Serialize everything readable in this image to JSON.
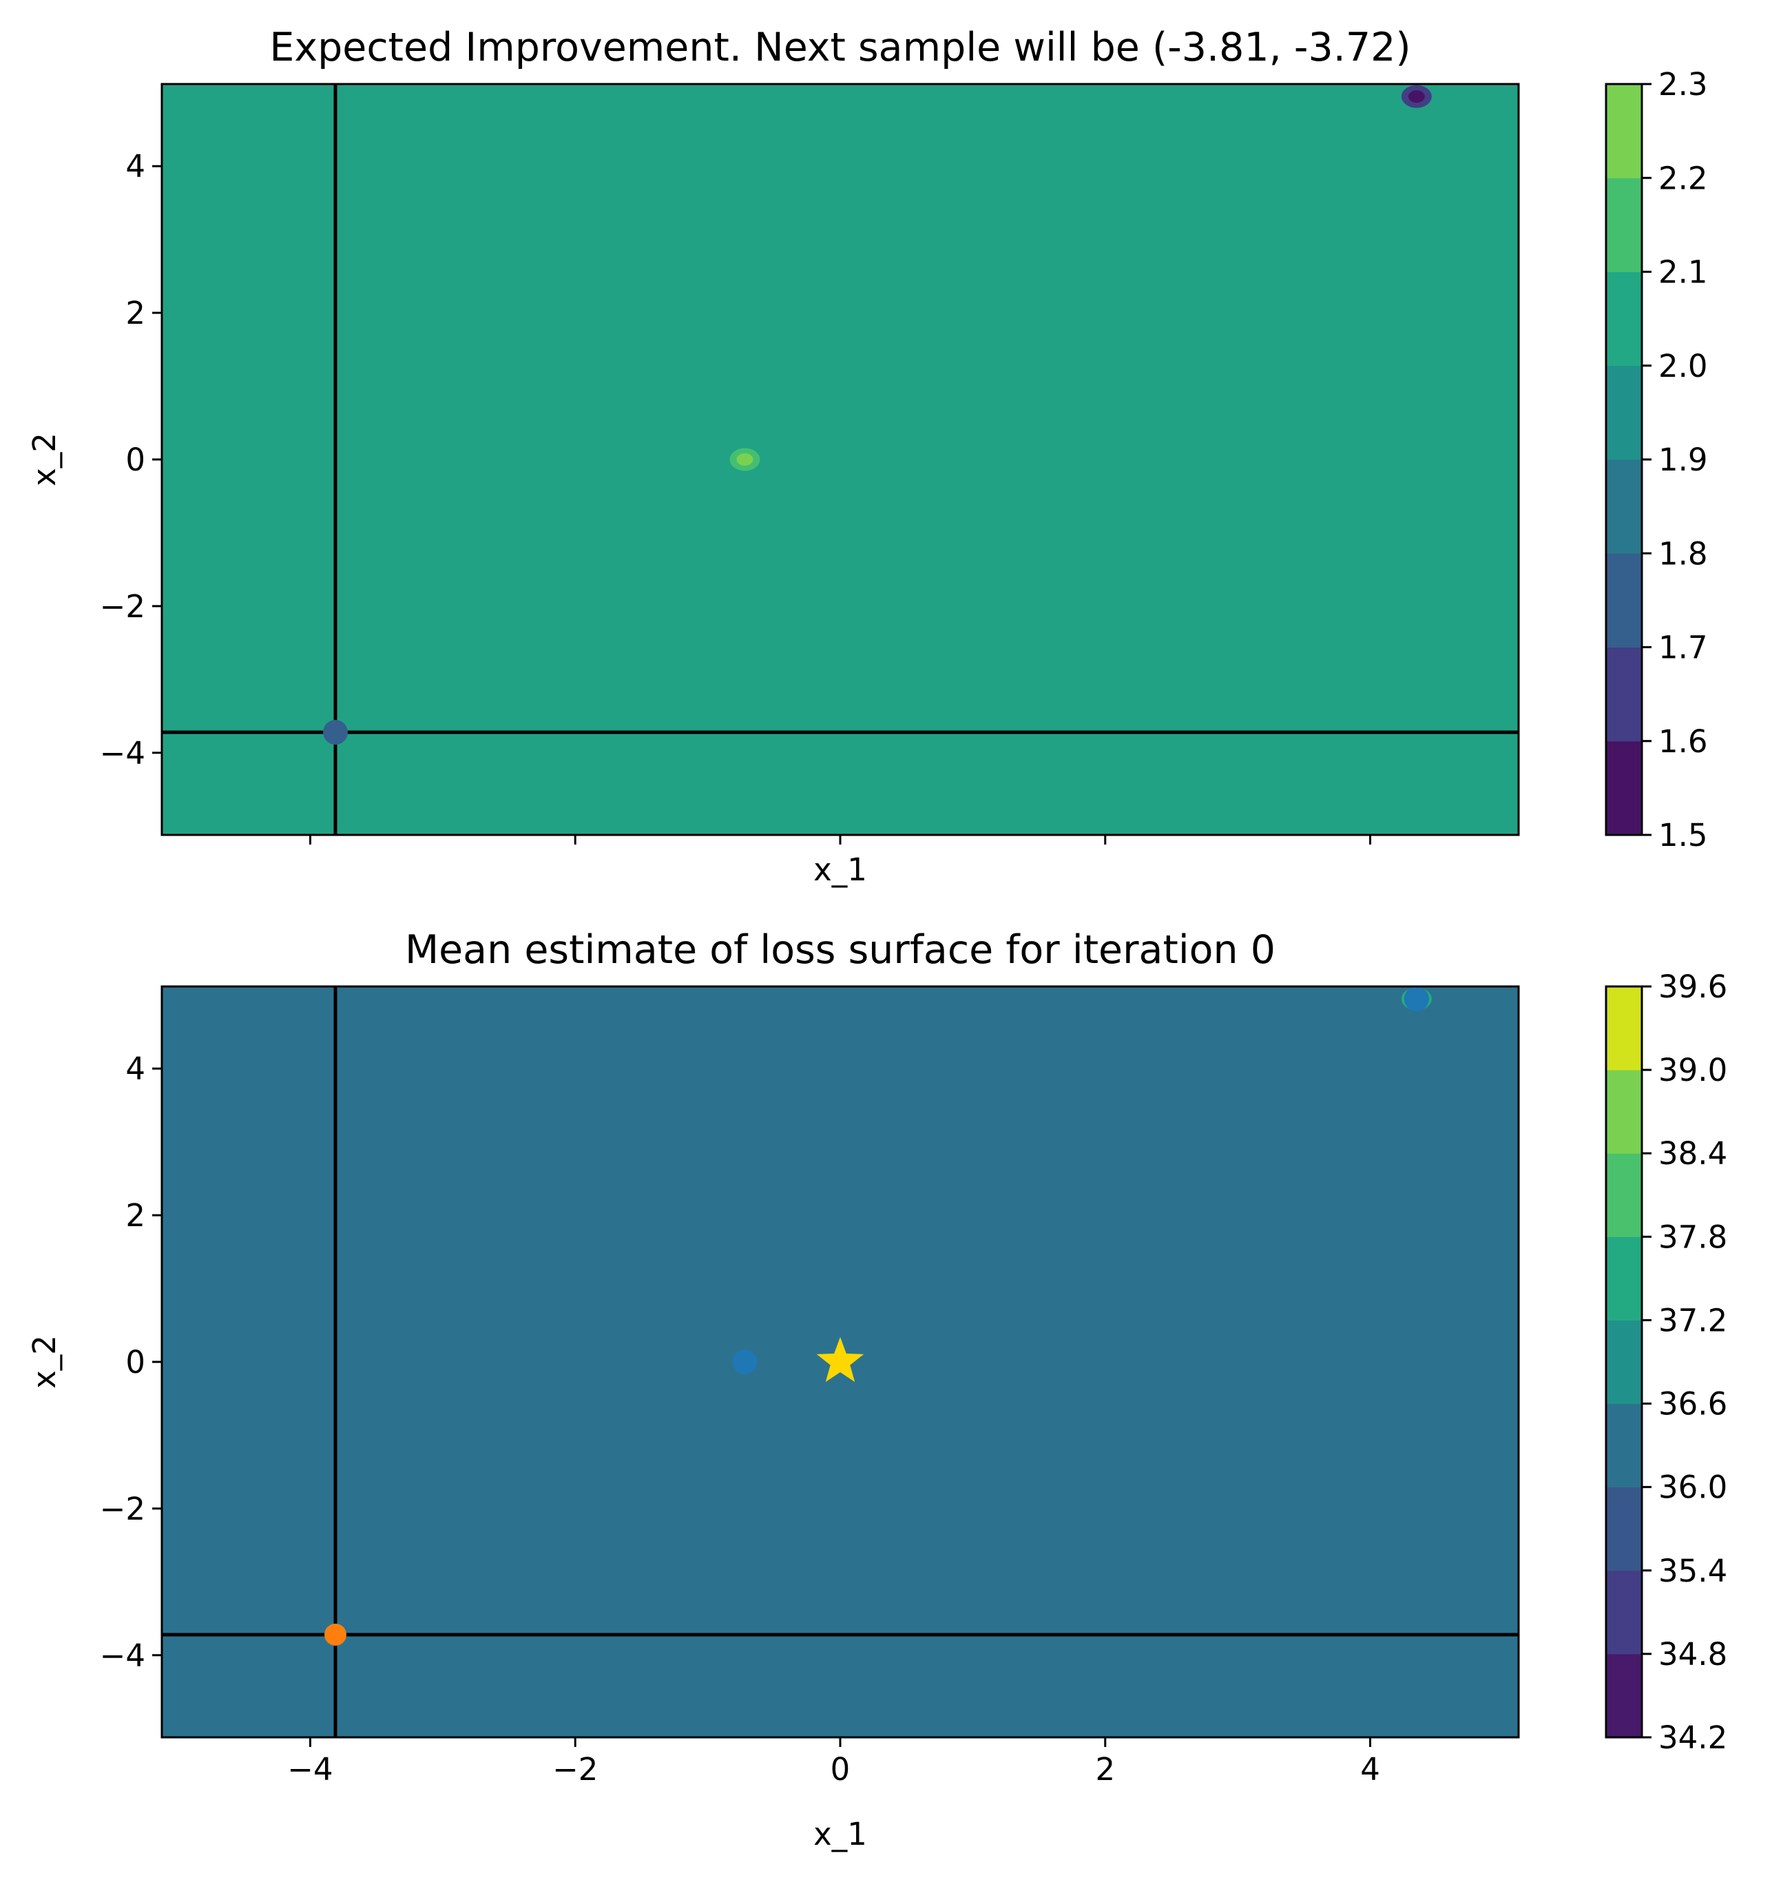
{
  "chart_data": [
    {
      "type": "contour",
      "title": "Expected Improvement. Next sample will be (-3.81, -3.72)",
      "xlabel": "x_1",
      "ylabel": "x_2",
      "xlim": [
        -5.12,
        5.12
      ],
      "ylim": [
        -5.12,
        5.12
      ],
      "x_ticks": [
        -4,
        -2,
        0,
        2,
        4
      ],
      "x_tick_labels": [
        "",
        "",
        "",
        "",
        ""
      ],
      "y_ticks": [
        -4,
        -2,
        0,
        2,
        4
      ],
      "y_tick_labels": [
        "−4",
        "−2",
        "0",
        "2",
        "4"
      ],
      "background_fill_color": "#21a285",
      "colorbar": {
        "levels": [
          1.5,
          1.6,
          1.7,
          1.8,
          1.9,
          2.0,
          2.1,
          2.2,
          2.3
        ],
        "tick_labels": [
          "1.5",
          "1.6",
          "1.7",
          "1.8",
          "1.9",
          "2.0",
          "2.1",
          "2.2",
          "2.3"
        ],
        "colors": [
          "#471365",
          "#433e85",
          "#355f8d",
          "#2a788e",
          "#21918c",
          "#22a884",
          "#44bf70",
          "#7ad151",
          "#d2e21b"
        ]
      },
      "features": [
        {
          "kind": "bump",
          "x": -0.72,
          "y": 0.0,
          "colors": [
            "#44bf70",
            "#7ad151"
          ]
        },
        {
          "kind": "dip",
          "x": 4.35,
          "y": 4.95,
          "colors": [
            "#433e85",
            "#471365"
          ]
        }
      ],
      "points": [
        {
          "x": -3.81,
          "y": -3.72,
          "color": "#355f8d"
        }
      ],
      "crosshair": {
        "x": -3.81,
        "y": -3.72,
        "color": "#000000"
      }
    },
    {
      "type": "contour",
      "title": "Mean estimate of loss surface for iteration 0",
      "xlabel": "x_1",
      "ylabel": "x_2",
      "xlim": [
        -5.12,
        5.12
      ],
      "ylim": [
        -5.12,
        5.12
      ],
      "x_ticks": [
        -4,
        -2,
        0,
        2,
        4
      ],
      "x_tick_labels": [
        "−4",
        "−2",
        "0",
        "2",
        "4"
      ],
      "y_ticks": [
        -4,
        -2,
        0,
        2,
        4
      ],
      "y_tick_labels": [
        "−4",
        "−2",
        "0",
        "2",
        "4"
      ],
      "background_fill_color": "#2c728e",
      "colorbar": {
        "levels": [
          34.2,
          34.8,
          35.4,
          36.0,
          36.6,
          37.2,
          37.8,
          38.4,
          39.0,
          39.6
        ],
        "tick_labels": [
          "34.2",
          "34.8",
          "35.4",
          "36.0",
          "36.6",
          "37.2",
          "37.8",
          "38.4",
          "39.0",
          "39.6"
        ],
        "colors": [
          "#481a6c",
          "#433e85",
          "#38588c",
          "#2c728e",
          "#21918c",
          "#24aa83",
          "#4ac16d",
          "#7ad151",
          "#d2e21b"
        ]
      },
      "features": [
        {
          "kind": "bump",
          "x": 4.35,
          "y": 4.95,
          "colors": [
            "#24aa83"
          ]
        }
      ],
      "points": [
        {
          "x": -0.72,
          "y": 0.0,
          "color": "#1f77b4"
        },
        {
          "x": 4.35,
          "y": 4.95,
          "color": "#1f77b4"
        },
        {
          "x": -3.81,
          "y": -3.72,
          "color": "#ff7f0e"
        }
      ],
      "star": {
        "x": 0.0,
        "y": 0.0,
        "color": "#ffd700"
      },
      "crosshair": {
        "x": -3.81,
        "y": -3.72,
        "color": "#000000"
      }
    }
  ]
}
